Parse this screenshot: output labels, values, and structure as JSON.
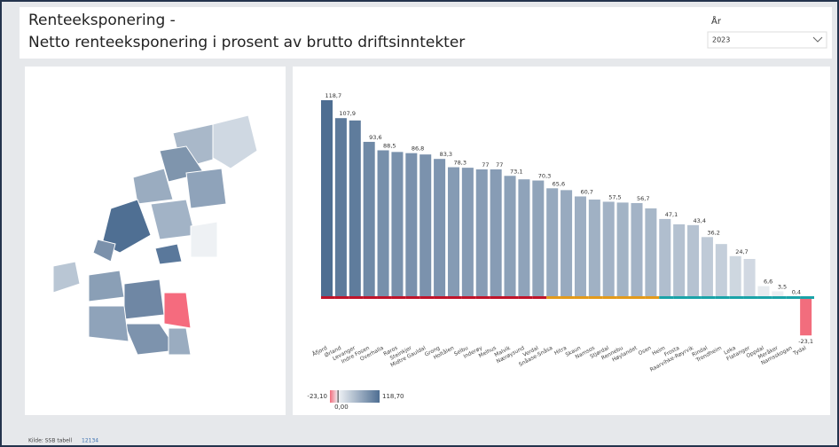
{
  "header": {
    "title": "Renteeksponering -",
    "subtitle": "Netto renteeksponering i prosent av brutto driftsinntekter"
  },
  "filter": {
    "label": "År",
    "value": "2023"
  },
  "source": {
    "text": "Kilde: SSB tabell",
    "link": "12134"
  },
  "chart_data": {
    "type": "bar",
    "categories": [
      "Åfjord",
      "Ørland",
      "Levanger",
      "Indre Fosen",
      "Overhalla",
      "Røros",
      "Steinkjer",
      "Midtre Gauldal",
      "Grong",
      "Holtålen",
      "Selbu",
      "Inderøy",
      "Melhus",
      "Malvik",
      "Nærøysund",
      "Verdal",
      "Snåase-Snåsa",
      "Hitra",
      "Skaun",
      "Namsos",
      "Stjørdal",
      "Rennebu",
      "Høylandet",
      "Osen",
      "Heim",
      "Frosta",
      "Raarvihke-Røyrvik",
      "Rindal",
      "Trondheim",
      "Leka",
      "Flatanger",
      "Oppdal",
      "Meråker",
      "Namsskogan",
      "Tydal"
    ],
    "values": [
      118.7,
      107.9,
      106.5,
      93.6,
      88.5,
      87.5,
      86.8,
      86,
      83.3,
      78.3,
      78,
      77,
      77,
      73.1,
      71,
      70.3,
      65.6,
      64.5,
      60.7,
      58.8,
      57.5,
      57,
      56.7,
      53.5,
      47.1,
      43.9,
      43.4,
      36.2,
      32,
      24.7,
      23,
      6.6,
      3.5,
      0.4,
      -23.1
    ],
    "value_labels": [
      "118,7",
      "107,9",
      null,
      "93,6",
      "88,5",
      null,
      "86,8",
      null,
      "83,3",
      "78,3",
      null,
      "77",
      "77",
      "73,1",
      null,
      "70,3",
      "65,6",
      null,
      "60,7",
      null,
      "57,5",
      null,
      "56,7",
      null,
      "47,1",
      null,
      "43,4",
      "36,2",
      null,
      "24,7",
      null,
      "6,6",
      "3,5",
      "0,4",
      "-23,1"
    ],
    "band_colors": [
      "#c0142a",
      "#c0142a",
      "#c0142a",
      "#c0142a",
      "#c0142a",
      "#c0142a",
      "#c0142a",
      "#c0142a",
      "#c0142a",
      "#c0142a",
      "#c0142a",
      "#c0142a",
      "#c0142a",
      "#c0142a",
      "#c0142a",
      "#c0142a",
      "#e39a1b",
      "#e39a1b",
      "#e39a1b",
      "#e39a1b",
      "#e39a1b",
      "#e39a1b",
      "#e39a1b",
      "#e39a1b",
      "#1aa3a8",
      "#1aa3a8",
      "#1aa3a8",
      "#1aa3a8",
      "#1aa3a8",
      "#1aa3a8",
      "#1aa3a8",
      "#1aa3a8",
      "#1aa3a8",
      "#1aa3a8",
      "#1aa3a8"
    ],
    "color_scale": {
      "colors": [
        "#f26d7d",
        "#f0f2f5",
        "#4e6e92"
      ],
      "stops": [
        {
          "value": -23.1,
          "label": "-23,10"
        },
        {
          "value": 0,
          "label": "0,00"
        },
        {
          "value": 118.7,
          "label": "118,70"
        }
      ]
    }
  }
}
